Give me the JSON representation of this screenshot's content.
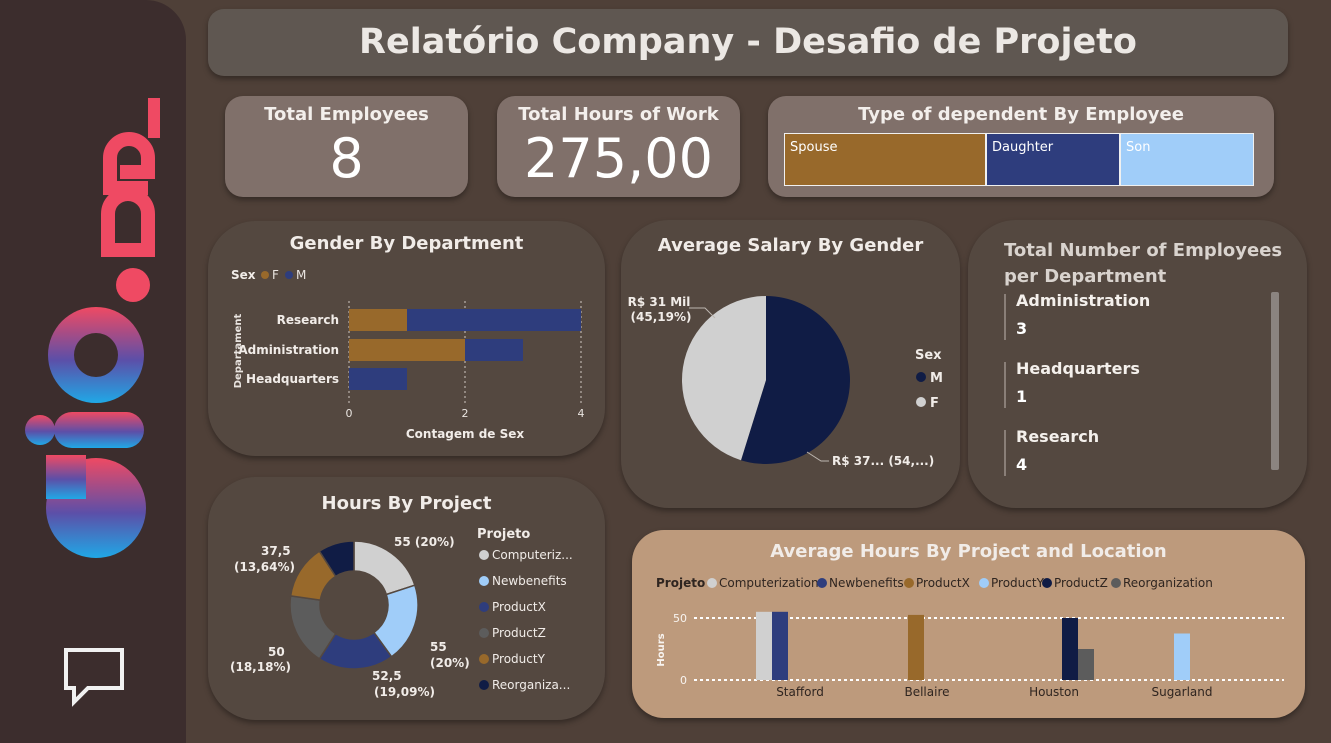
{
  "header": {
    "title": "Relatório Company - Desafio de Projeto"
  },
  "cards": {
    "employees": {
      "label": "Total Employees",
      "value": "8"
    },
    "hours": {
      "label": "Total Hours of Work",
      "value": "275,00"
    }
  },
  "dependents": {
    "title": "Type of dependent By Employee",
    "items": [
      {
        "label": "Spouse",
        "color": "#98692b"
      },
      {
        "label": "Daughter",
        "color": "#2e3d7d"
      },
      {
        "label": "Son",
        "color": "#a0cdf9"
      }
    ]
  },
  "gender_dept": {
    "title": "Gender By Department",
    "legend_title": "Sex",
    "legend": [
      "F",
      "M"
    ],
    "ylabel": "Departament",
    "xlabel": "Contagem de Sex",
    "ticks": [
      "0",
      "2",
      "4"
    ],
    "categories": [
      "Research",
      "Administration",
      "Headquarters"
    ]
  },
  "salary": {
    "title": "Average Salary By Gender",
    "legend_title": "Sex",
    "legend": [
      "M",
      "F"
    ],
    "label_f_1": "R$ 31 Mil",
    "label_f_2": "(45,19%)",
    "label_m": "R$ 37... (54,...)"
  },
  "dept_count": {
    "title_1": "Total Number of Employees",
    "title_2": "per Department",
    "items": [
      {
        "label": "Administration",
        "value": "3"
      },
      {
        "label": "Headquarters",
        "value": "1"
      },
      {
        "label": "Research",
        "value": "4"
      }
    ]
  },
  "hours_project": {
    "title": "Hours By Project",
    "legend_title": "Projeto",
    "legend": [
      "Computeriz...",
      "Newbenefits",
      "ProductX",
      "ProductZ",
      "ProductY",
      "Reorganiza..."
    ],
    "labels": {
      "a1": "55 (20%)",
      "b1": "55",
      "b2": "(20%)",
      "c1": "52,5",
      "c2": "(19,09%)",
      "d1": "50",
      "d2": "(18,18%)",
      "e1": "37,5",
      "e2": "(13,64%)"
    }
  },
  "avg_hours": {
    "title": "Average Hours By Project and Location",
    "legend_title": "Projeto",
    "legend": [
      "Computerization",
      "Newbenefits",
      "ProductX",
      "ProductY",
      "ProductZ",
      "Reorganization"
    ],
    "ylabel": "Hours",
    "yticks": [
      "50",
      "0"
    ],
    "locations": [
      "Stafford",
      "Bellaire",
      "Houston",
      "Sugarland"
    ]
  },
  "colors": {
    "background": "#4f4038",
    "sidebar": "#3c2d2d",
    "card": "#80706a",
    "panel": "#544840",
    "avg_panel": "#bd9a7c",
    "female": "#98692b",
    "male": "#2e3d7d"
  },
  "chart_data": [
    {
      "type": "bar",
      "orientation": "horizontal",
      "stacked": true,
      "title": "Gender By Department",
      "xlabel": "Contagem de Sex",
      "ylabel": "Departament",
      "categories": [
        "Research",
        "Administration",
        "Headquarters"
      ],
      "series": [
        {
          "name": "F",
          "values": [
            1,
            2,
            0
          ]
        },
        {
          "name": "M",
          "values": [
            3,
            1,
            1
          ]
        }
      ],
      "xlim": [
        0,
        4
      ]
    },
    {
      "type": "pie",
      "title": "Average Salary By Gender",
      "categories": [
        "M",
        "F"
      ],
      "values": [
        54.81,
        45.19
      ]
    },
    {
      "type": "pie",
      "title": "Hours By Project",
      "categories": [
        "Computerization",
        "Newbenefits",
        "ProductX",
        "ProductZ",
        "ProductY",
        "Reorganization"
      ],
      "values": [
        55,
        55,
        52.5,
        50,
        37.5,
        25
      ]
    },
    {
      "type": "bar",
      "title": "Average Hours By Project and Location",
      "ylabel": "Hours",
      "categories": [
        "Stafford",
        "Bellaire",
        "Houston",
        "Sugarland"
      ],
      "series": [
        {
          "name": "Computerization",
          "values": [
            55,
            null,
            null,
            null
          ]
        },
        {
          "name": "Newbenefits",
          "values": [
            55,
            null,
            null,
            null
          ]
        },
        {
          "name": "ProductX",
          "values": [
            null,
            52.5,
            null,
            null
          ]
        },
        {
          "name": "ProductY",
          "values": [
            null,
            null,
            null,
            37.5
          ]
        },
        {
          "name": "ProductZ",
          "values": [
            null,
            null,
            50,
            null
          ]
        },
        {
          "name": "Reorganization",
          "values": [
            null,
            null,
            25,
            null
          ]
        }
      ],
      "ylim": [
        0,
        55
      ]
    }
  ]
}
